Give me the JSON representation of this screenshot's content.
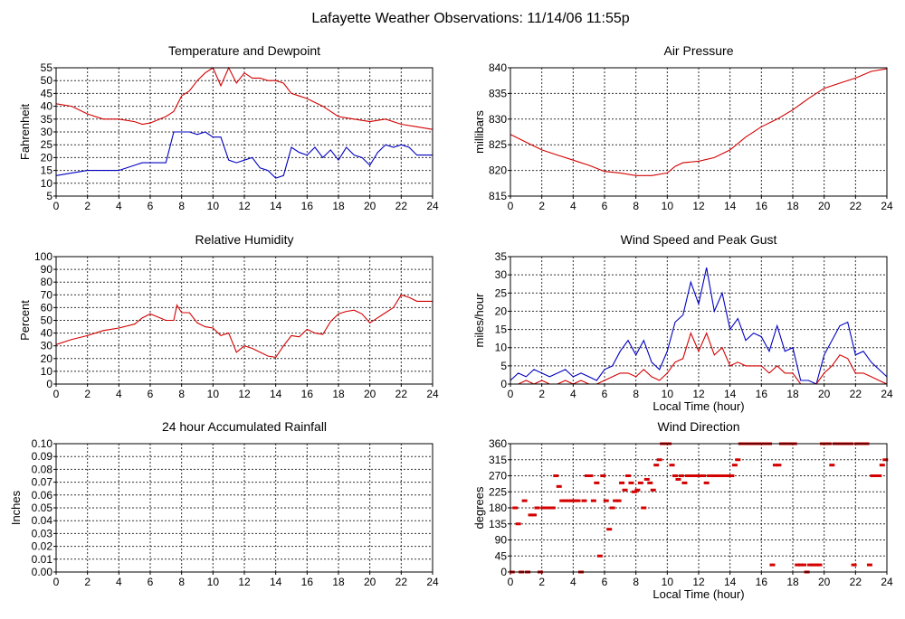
{
  "page_title": "Lafayette Weather Observations: 11/14/06 11:55p",
  "colors": {
    "red": "#d40000",
    "blue": "#0000c0"
  },
  "chart_data": [
    {
      "id": "temp",
      "type": "line",
      "title": "Temperature and Dewpoint",
      "xlabel": "",
      "ylabel": "Fahrenheit",
      "xlim": [
        0,
        24
      ],
      "ylim": [
        5,
        55
      ],
      "xticks": [
        "0",
        "2",
        "4",
        "6",
        "8",
        "10",
        "12",
        "14",
        "16",
        "18",
        "20",
        "22",
        "24"
      ],
      "yticks": [
        "5",
        "10",
        "15",
        "20",
        "25",
        "30",
        "35",
        "40",
        "45",
        "50",
        "55"
      ],
      "series": [
        {
          "color": "red",
          "x": [
            0,
            1,
            2,
            3,
            4,
            5,
            5.5,
            6,
            7,
            7.5,
            8,
            8.5,
            9,
            9.5,
            10,
            10.5,
            11,
            11.5,
            12,
            12.5,
            13,
            13.5,
            14,
            14.5,
            15,
            15.5,
            16,
            17,
            18,
            19,
            20,
            21,
            22,
            23,
            24
          ],
          "y": [
            41,
            40,
            37,
            35,
            35,
            34,
            33,
            33.5,
            36,
            38,
            44,
            46,
            50,
            53,
            55,
            48,
            55,
            49,
            53,
            51,
            51,
            50,
            50,
            49,
            45,
            44,
            43,
            40,
            36,
            35,
            34,
            35,
            33,
            32,
            31
          ]
        },
        {
          "color": "blue",
          "x": [
            0,
            1,
            2,
            3,
            4,
            5,
            5.5,
            6,
            7,
            7.5,
            8,
            8.5,
            9,
            9.5,
            10,
            10.5,
            11,
            11.5,
            12,
            12.5,
            13,
            13.5,
            14,
            14.5,
            15,
            15.5,
            16,
            16.5,
            17,
            17.5,
            18,
            18.5,
            19,
            19.5,
            20,
            20.5,
            21,
            21.5,
            22,
            22.5,
            23,
            23.5,
            24
          ],
          "y": [
            13,
            14,
            15,
            15,
            15,
            17,
            18,
            18,
            18,
            30,
            30,
            30,
            29,
            30,
            28,
            28,
            19,
            18,
            19,
            20,
            16,
            15,
            12,
            13,
            24,
            22,
            21,
            24,
            20,
            23,
            19,
            24,
            21,
            20,
            17,
            22,
            25,
            24,
            25,
            24,
            21,
            21,
            21
          ]
        }
      ]
    },
    {
      "id": "press",
      "type": "line",
      "title": "Air Pressure",
      "xlabel": "",
      "ylabel": "millibars",
      "xlim": [
        0,
        24
      ],
      "ylim": [
        815,
        840
      ],
      "xticks": [
        "0",
        "2",
        "4",
        "6",
        "8",
        "10",
        "12",
        "14",
        "16",
        "18",
        "20",
        "22",
        "24"
      ],
      "yticks": [
        "815",
        "820",
        "825",
        "830",
        "835",
        "840"
      ],
      "series": [
        {
          "color": "red",
          "x": [
            0,
            1,
            2,
            3,
            4,
            5,
            6,
            7,
            8,
            9,
            10,
            10.5,
            11,
            12,
            13,
            14,
            15,
            16,
            17,
            18,
            19,
            20,
            21,
            22,
            23,
            24
          ],
          "y": [
            827,
            825.5,
            824,
            823,
            822,
            821,
            819.8,
            819.5,
            819,
            819,
            819.5,
            820.8,
            821.5,
            821.8,
            822.5,
            824,
            826.5,
            828.5,
            830,
            831.8,
            834,
            836,
            837,
            838,
            839.3,
            839.8
          ]
        }
      ]
    },
    {
      "id": "rh",
      "type": "line",
      "title": "Relative Humidity",
      "xlabel": "",
      "ylabel": "Percent",
      "xlim": [
        0,
        24
      ],
      "ylim": [
        0,
        100
      ],
      "xticks": [
        "0",
        "2",
        "4",
        "6",
        "8",
        "10",
        "12",
        "14",
        "16",
        "18",
        "20",
        "22",
        "24"
      ],
      "yticks": [
        "0",
        "10",
        "20",
        "30",
        "40",
        "50",
        "60",
        "70",
        "80",
        "90",
        "100"
      ],
      "series": [
        {
          "color": "red",
          "x": [
            0,
            1,
            2,
            3,
            4,
            5,
            5.5,
            6,
            7,
            7.5,
            7.7,
            8,
            8.5,
            9,
            9.5,
            10,
            10.5,
            11,
            11.5,
            12,
            12.5,
            13,
            13.5,
            14,
            14.5,
            15,
            15.5,
            16,
            16.5,
            17,
            17.5,
            18,
            18.5,
            19,
            19.5,
            20,
            20.5,
            21,
            21.5,
            22,
            22.5,
            23,
            23.5,
            24
          ],
          "y": [
            31,
            35,
            38,
            42,
            44,
            47,
            52,
            55,
            50,
            50,
            62,
            56,
            56,
            48,
            45,
            44,
            38,
            40,
            25,
            30,
            28,
            25,
            22,
            21,
            30,
            38,
            37,
            43,
            40,
            39,
            49,
            55,
            57,
            58,
            55,
            48,
            52,
            56,
            60,
            70,
            68,
            65,
            65,
            65
          ]
        }
      ]
    },
    {
      "id": "wind",
      "type": "line",
      "title": "Wind Speed and Peak Gust",
      "xlabel": "Local Time (hour)",
      "ylabel": "miles/hour",
      "xlim": [
        0,
        24
      ],
      "ylim": [
        0,
        35
      ],
      "xticks": [
        "0",
        "2",
        "4",
        "6",
        "8",
        "10",
        "12",
        "14",
        "16",
        "18",
        "20",
        "22",
        "24"
      ],
      "yticks": [
        "0",
        "5",
        "10",
        "15",
        "20",
        "25",
        "30",
        "35"
      ],
      "series": [
        {
          "color": "blue",
          "x": [
            0,
            0.5,
            1,
            1.5,
            2,
            2.5,
            3,
            3.5,
            4,
            4.5,
            5,
            5.5,
            6,
            6.5,
            7,
            7.5,
            8,
            8.5,
            9,
            9.5,
            10,
            10.5,
            11,
            11.5,
            12,
            12.5,
            13,
            13.5,
            14,
            14.5,
            15,
            15.5,
            16,
            16.5,
            17,
            17.5,
            18,
            18.5,
            19,
            19.5,
            20,
            20.5,
            21,
            21.5,
            22,
            22.5,
            23,
            23.5,
            24
          ],
          "y": [
            1,
            3,
            2,
            4,
            3,
            2,
            3,
            4,
            2,
            3,
            2,
            1,
            4,
            5,
            9,
            12,
            8,
            12,
            6,
            4,
            9,
            17,
            19,
            28,
            22,
            32,
            20,
            25,
            15,
            18,
            12,
            14,
            13,
            9,
            16,
            9,
            10,
            1,
            1,
            0,
            8,
            12,
            16,
            17,
            8,
            9,
            6,
            4,
            2
          ]
        },
        {
          "color": "red",
          "x": [
            0,
            0.5,
            1,
            1.5,
            2,
            2.5,
            3,
            3.5,
            4,
            4.5,
            5,
            5.5,
            6,
            6.5,
            7,
            7.5,
            8,
            8.5,
            9,
            9.5,
            10,
            10.5,
            11,
            11.5,
            12,
            12.5,
            13,
            13.5,
            14,
            14.5,
            15,
            15.5,
            16,
            16.5,
            17,
            17.5,
            18,
            18.5,
            19,
            19.5,
            20,
            20.5,
            21,
            21.5,
            22,
            22.5,
            23,
            23.5,
            24
          ],
          "y": [
            0,
            0,
            1,
            0,
            1,
            0,
            0,
            1,
            0,
            1,
            0,
            0,
            1,
            2,
            3,
            3,
            2,
            4,
            2,
            1,
            3,
            6,
            7,
            14,
            9,
            14,
            8,
            10,
            5,
            6,
            5,
            5,
            5,
            3,
            5,
            3,
            3,
            0,
            0,
            0,
            3,
            5,
            8,
            7,
            3,
            3,
            2,
            1,
            0
          ]
        }
      ]
    },
    {
      "id": "rain",
      "type": "line",
      "title": "24 hour Accumulated Rainfall",
      "xlabel": "",
      "ylabel": "Inches",
      "xlim": [
        0,
        24
      ],
      "ylim": [
        0,
        0.1
      ],
      "xticks": [
        "0",
        "2",
        "4",
        "6",
        "8",
        "10",
        "12",
        "14",
        "16",
        "18",
        "20",
        "22",
        "24"
      ],
      "yticks": [
        "0.00",
        "0.01",
        "0.02",
        "0.03",
        "0.04",
        "0.05",
        "0.06",
        "0.07",
        "0.08",
        "0.09",
        "0.10"
      ],
      "series": [
        {
          "color": "red",
          "x": [
            0,
            24
          ],
          "y": [
            0,
            0
          ]
        }
      ]
    },
    {
      "id": "dir",
      "type": "scatter",
      "title": "Wind Direction",
      "xlabel": "Local Time (hour)",
      "ylabel": "degrees",
      "xlim": [
        0,
        24
      ],
      "ylim": [
        0,
        360
      ],
      "xticks": [
        "0",
        "2",
        "4",
        "6",
        "8",
        "10",
        "12",
        "14",
        "16",
        "18",
        "20",
        "22",
        "24"
      ],
      "yticks": [
        "0",
        "45",
        "90",
        "135",
        "180",
        "225",
        "270",
        "315",
        "360"
      ],
      "series": [
        {
          "color": "red",
          "x": [
            0.1,
            0.3,
            0.5,
            0.7,
            0.9,
            1.1,
            1.3,
            1.5,
            1.7,
            1.9,
            2.1,
            2.3,
            2.5,
            2.7,
            2.9,
            3.1,
            3.3,
            3.5,
            3.7,
            3.9,
            4.1,
            4.3,
            4.5,
            4.7,
            4.9,
            5.1,
            5.3,
            5.5,
            5.7,
            5.9,
            6.1,
            6.3,
            6.5,
            6.7,
            6.9,
            7.1,
            7.3,
            7.5,
            7.7,
            7.9,
            8.1,
            8.3,
            8.5,
            8.7,
            8.9,
            9.1,
            9.3,
            9.5,
            9.7,
            9.9,
            10.1,
            10.3,
            10.5,
            10.7,
            10.9,
            11.1,
            11.3,
            11.5,
            11.7,
            11.9,
            12.1,
            12.3,
            12.5,
            12.7,
            12.9,
            13.1,
            13.3,
            13.5,
            13.7,
            13.9,
            14.1,
            14.3,
            14.5,
            14.7,
            14.9,
            15.1,
            15.3,
            15.5,
            15.7,
            15.9,
            16.1,
            16.3,
            16.5,
            16.7,
            16.9,
            17.1,
            17.3,
            17.5,
            17.7,
            17.9,
            18.1,
            18.3,
            18.5,
            18.7,
            18.9,
            19.1,
            19.3,
            19.5,
            19.7,
            19.9,
            20.1,
            20.3,
            20.5,
            20.7,
            20.9,
            21.1,
            21.3,
            21.5,
            21.7,
            21.9,
            22.1,
            22.3,
            22.5,
            22.7,
            22.9,
            23.1,
            23.3,
            23.5,
            23.7,
            23.9
          ],
          "y": [
            0,
            180,
            135,
            0,
            200,
            0,
            160,
            160,
            180,
            0,
            180,
            180,
            180,
            180,
            270,
            240,
            200,
            200,
            200,
            200,
            200,
            200,
            0,
            200,
            270,
            270,
            200,
            250,
            45,
            270,
            200,
            120,
            180,
            200,
            200,
            250,
            230,
            270,
            250,
            225,
            230,
            250,
            180,
            260,
            250,
            230,
            300,
            315,
            360,
            360,
            360,
            300,
            270,
            260,
            270,
            250,
            270,
            270,
            270,
            270,
            270,
            270,
            250,
            270,
            270,
            270,
            270,
            270,
            270,
            270,
            270,
            300,
            315,
            360,
            360,
            360,
            360,
            360,
            360,
            360,
            360,
            360,
            360,
            20,
            300,
            300,
            360,
            360,
            360,
            360,
            360,
            20,
            20,
            20,
            0,
            20,
            20,
            20,
            20,
            360,
            360,
            360,
            300,
            360,
            360,
            360,
            360,
            360,
            360,
            20,
            360,
            360,
            360,
            360,
            20,
            270,
            270,
            270,
            300,
            315
          ]
        }
      ]
    }
  ]
}
